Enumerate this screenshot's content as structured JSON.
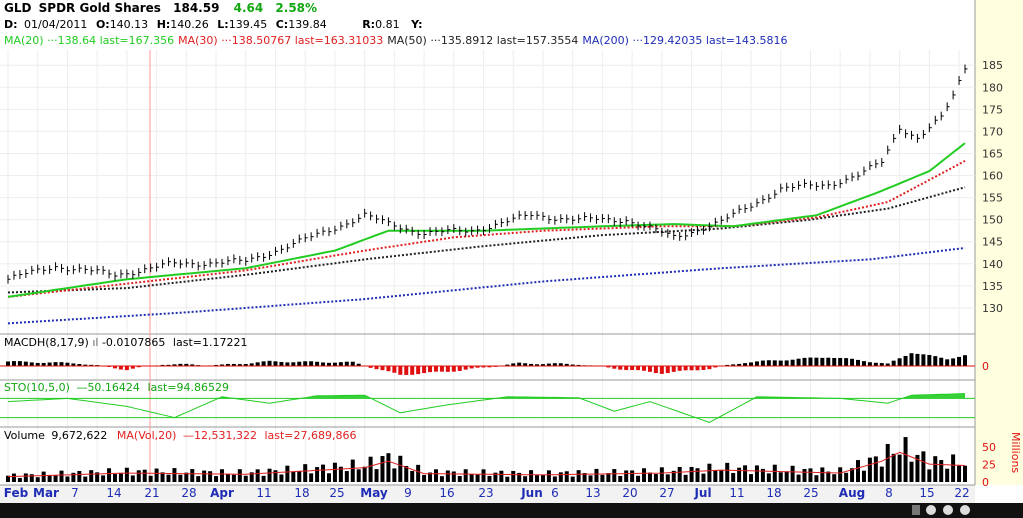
{
  "header": {
    "symbol": "GLD",
    "name": "SPDR Gold Shares",
    "last": "184.59",
    "change": "4.64",
    "change_pct": "2.58%",
    "ohlc": {
      "d_label": "D:",
      "date": "01/04/2011",
      "o_label": "O:",
      "open": "140.13",
      "h_label": "H:",
      "high": "140.26",
      "l_label": "L:",
      "low": "139.45",
      "c_label": "C:",
      "close": "139.84",
      "r_label": "R:",
      "r": "0.81",
      "y_label": "Y:"
    },
    "ma_legend": [
      {
        "label": "MA(20)",
        "value": "138.64",
        "last": "last=167.356",
        "color": "#22cc22"
      },
      {
        "label": "MA(30)",
        "value": "138.50767",
        "last": "last=163.31033",
        "color": "#e02020"
      },
      {
        "label": "MA(50)",
        "value": "135.8912",
        "last": "last=157.3554",
        "color": "#222222"
      },
      {
        "label": "MA(200)",
        "value": "129.42035",
        "last": "last=143.5816",
        "color": "#1f2db5"
      }
    ]
  },
  "panels": {
    "macd": {
      "label": "MACDH(8,17,9)",
      "value": "-0.0107865",
      "last": "last=1.17221",
      "zero_label": "0"
    },
    "sto": {
      "label": "STO(10,5,0)",
      "value": "50.16424",
      "last": "last=94.86529"
    },
    "volume": {
      "label": "Volume",
      "value": "9,672,622",
      "ma_label": "MA(Vol,20)",
      "ma_value": "12,531,322",
      "ma_last": "last=27,689,866",
      "unit": "Millions",
      "ticks": [
        "50",
        "25",
        "0"
      ]
    }
  },
  "x_axis": {
    "labels": [
      {
        "text": "Feb",
        "bold": true
      },
      {
        "text": "Mar",
        "bold": true
      },
      {
        "text": "7",
        "bold": false
      },
      {
        "text": "14",
        "bold": false
      },
      {
        "text": "21",
        "bold": false
      },
      {
        "text": "28",
        "bold": false
      },
      {
        "text": "Apr",
        "bold": true
      },
      {
        "text": "11",
        "bold": false
      },
      {
        "text": "18",
        "bold": false
      },
      {
        "text": "25",
        "bold": false
      },
      {
        "text": "May",
        "bold": true
      },
      {
        "text": "9",
        "bold": false
      },
      {
        "text": "16",
        "bold": false
      },
      {
        "text": "23",
        "bold": false
      },
      {
        "text": "Jun",
        "bold": true
      },
      {
        "text": "6",
        "bold": false
      },
      {
        "text": "13",
        "bold": false
      },
      {
        "text": "20",
        "bold": false
      },
      {
        "text": "27",
        "bold": false
      },
      {
        "text": "Jul",
        "bold": true
      },
      {
        "text": "11",
        "bold": false
      },
      {
        "text": "18",
        "bold": false
      },
      {
        "text": "25",
        "bold": false
      },
      {
        "text": "Aug",
        "bold": true
      },
      {
        "text": "8",
        "bold": false
      },
      {
        "text": "15",
        "bold": false
      },
      {
        "text": "22",
        "bold": false
      }
    ]
  },
  "colors": {
    "ma20": "#22cc22",
    "ma30": "#e02020",
    "ma50": "#222222",
    "ma200": "#1f2db5",
    "positive": "#000000",
    "negative": "#e01010",
    "sto": "#22cc22",
    "panel_bg": "#ffffe0"
  },
  "chart_data": {
    "type": "line",
    "price_axis": {
      "ticks": [
        185,
        180,
        175,
        170,
        165,
        160,
        155,
        150,
        145,
        140,
        135,
        130
      ],
      "ylim": [
        125,
        188
      ]
    },
    "price_waypoints": [
      {
        "i": 0,
        "v": 136.5
      },
      {
        "i": 8,
        "v": 139.5
      },
      {
        "i": 18,
        "v": 137.5
      },
      {
        "i": 28,
        "v": 140
      },
      {
        "i": 40,
        "v": 140.5
      },
      {
        "i": 52,
        "v": 146.5
      },
      {
        "i": 60,
        "v": 151
      },
      {
        "i": 64,
        "v": 149
      },
      {
        "i": 70,
        "v": 147
      },
      {
        "i": 78,
        "v": 147.5
      },
      {
        "i": 88,
        "v": 151
      },
      {
        "i": 96,
        "v": 150
      },
      {
        "i": 104,
        "v": 150
      },
      {
        "i": 112,
        "v": 146
      },
      {
        "i": 120,
        "v": 149.5
      },
      {
        "i": 130,
        "v": 157
      },
      {
        "i": 138,
        "v": 158
      },
      {
        "i": 143,
        "v": 160
      },
      {
        "i": 147,
        "v": 163
      },
      {
        "i": 150,
        "v": 171
      },
      {
        "i": 153,
        "v": 168.5
      },
      {
        "i": 157,
        "v": 173
      },
      {
        "i": 159,
        "v": 178
      },
      {
        "i": 161,
        "v": 184.5
      }
    ],
    "ma20": [
      {
        "i": 0,
        "v": 132.5
      },
      {
        "i": 20,
        "v": 136.5
      },
      {
        "i": 40,
        "v": 139
      },
      {
        "i": 55,
        "v": 143
      },
      {
        "i": 64,
        "v": 147.5
      },
      {
        "i": 80,
        "v": 147.5
      },
      {
        "i": 100,
        "v": 148.5
      },
      {
        "i": 112,
        "v": 149
      },
      {
        "i": 122,
        "v": 148.5
      },
      {
        "i": 136,
        "v": 151
      },
      {
        "i": 146,
        "v": 156
      },
      {
        "i": 155,
        "v": 161
      },
      {
        "i": 161,
        "v": 167.356
      }
    ],
    "ma30": [
      {
        "i": 0,
        "v": 132.5
      },
      {
        "i": 20,
        "v": 135.5
      },
      {
        "i": 40,
        "v": 138.5
      },
      {
        "i": 60,
        "v": 143
      },
      {
        "i": 75,
        "v": 146
      },
      {
        "i": 90,
        "v": 147.5
      },
      {
        "i": 110,
        "v": 148.5
      },
      {
        "i": 122,
        "v": 148.5
      },
      {
        "i": 136,
        "v": 150.5
      },
      {
        "i": 148,
        "v": 154
      },
      {
        "i": 161,
        "v": 163.31
      }
    ],
    "ma50": [
      {
        "i": 0,
        "v": 133.5
      },
      {
        "i": 20,
        "v": 134.5
      },
      {
        "i": 40,
        "v": 137.5
      },
      {
        "i": 60,
        "v": 141
      },
      {
        "i": 80,
        "v": 144
      },
      {
        "i": 100,
        "v": 146.5
      },
      {
        "i": 120,
        "v": 148
      },
      {
        "i": 135,
        "v": 150
      },
      {
        "i": 148,
        "v": 152.5
      },
      {
        "i": 161,
        "v": 157.36
      }
    ],
    "ma200": [
      {
        "i": 0,
        "v": 126.5
      },
      {
        "i": 30,
        "v": 129
      },
      {
        "i": 60,
        "v": 132
      },
      {
        "i": 90,
        "v": 136
      },
      {
        "i": 120,
        "v": 139
      },
      {
        "i": 145,
        "v": 141
      },
      {
        "i": 161,
        "v": 143.58
      }
    ],
    "macd_waypoints": [
      {
        "i": 0,
        "v": 0.5
      },
      {
        "i": 12,
        "v": 0.3
      },
      {
        "i": 20,
        "v": -0.4
      },
      {
        "i": 26,
        "v": 0.2
      },
      {
        "i": 36,
        "v": 0.1
      },
      {
        "i": 44,
        "v": 0.5
      },
      {
        "i": 58,
        "v": 0.4
      },
      {
        "i": 66,
        "v": -1.0
      },
      {
        "i": 76,
        "v": -0.5
      },
      {
        "i": 86,
        "v": 0.3
      },
      {
        "i": 96,
        "v": 0.2
      },
      {
        "i": 104,
        "v": -0.4
      },
      {
        "i": 110,
        "v": -0.8
      },
      {
        "i": 118,
        "v": -0.3
      },
      {
        "i": 124,
        "v": 0.4
      },
      {
        "i": 138,
        "v": 1.0
      },
      {
        "i": 144,
        "v": 0.6
      },
      {
        "i": 148,
        "v": 0.2
      },
      {
        "i": 152,
        "v": 1.5
      },
      {
        "i": 158,
        "v": 0.8
      },
      {
        "i": 161,
        "v": 1.17
      }
    ],
    "sto_waypoints": [
      {
        "i": 0,
        "v": 70
      },
      {
        "i": 10,
        "v": 80
      },
      {
        "i": 20,
        "v": 55
      },
      {
        "i": 28,
        "v": 20
      },
      {
        "i": 36,
        "v": 85
      },
      {
        "i": 44,
        "v": 65
      },
      {
        "i": 52,
        "v": 88
      },
      {
        "i": 60,
        "v": 90
      },
      {
        "i": 66,
        "v": 35
      },
      {
        "i": 74,
        "v": 60
      },
      {
        "i": 84,
        "v": 85
      },
      {
        "i": 96,
        "v": 82
      },
      {
        "i": 102,
        "v": 40
      },
      {
        "i": 108,
        "v": 70
      },
      {
        "i": 118,
        "v": 5
      },
      {
        "i": 126,
        "v": 85
      },
      {
        "i": 140,
        "v": 80
      },
      {
        "i": 148,
        "v": 65
      },
      {
        "i": 152,
        "v": 90
      },
      {
        "i": 161,
        "v": 94.87
      }
    ],
    "sto_levels": [
      20,
      80
    ],
    "volume_waypoints": [
      {
        "i": 0,
        "v": 9
      },
      {
        "i": 20,
        "v": 15
      },
      {
        "i": 40,
        "v": 13
      },
      {
        "i": 60,
        "v": 24
      },
      {
        "i": 64,
        "v": 35
      },
      {
        "i": 70,
        "v": 14
      },
      {
        "i": 90,
        "v": 12
      },
      {
        "i": 110,
        "v": 15
      },
      {
        "i": 120,
        "v": 20
      },
      {
        "i": 140,
        "v": 15
      },
      {
        "i": 147,
        "v": 35
      },
      {
        "i": 150,
        "v": 50
      },
      {
        "i": 155,
        "v": 30
      },
      {
        "i": 161,
        "v": 27.7
      }
    ],
    "volume_ylim": [
      0,
      60
    ]
  }
}
